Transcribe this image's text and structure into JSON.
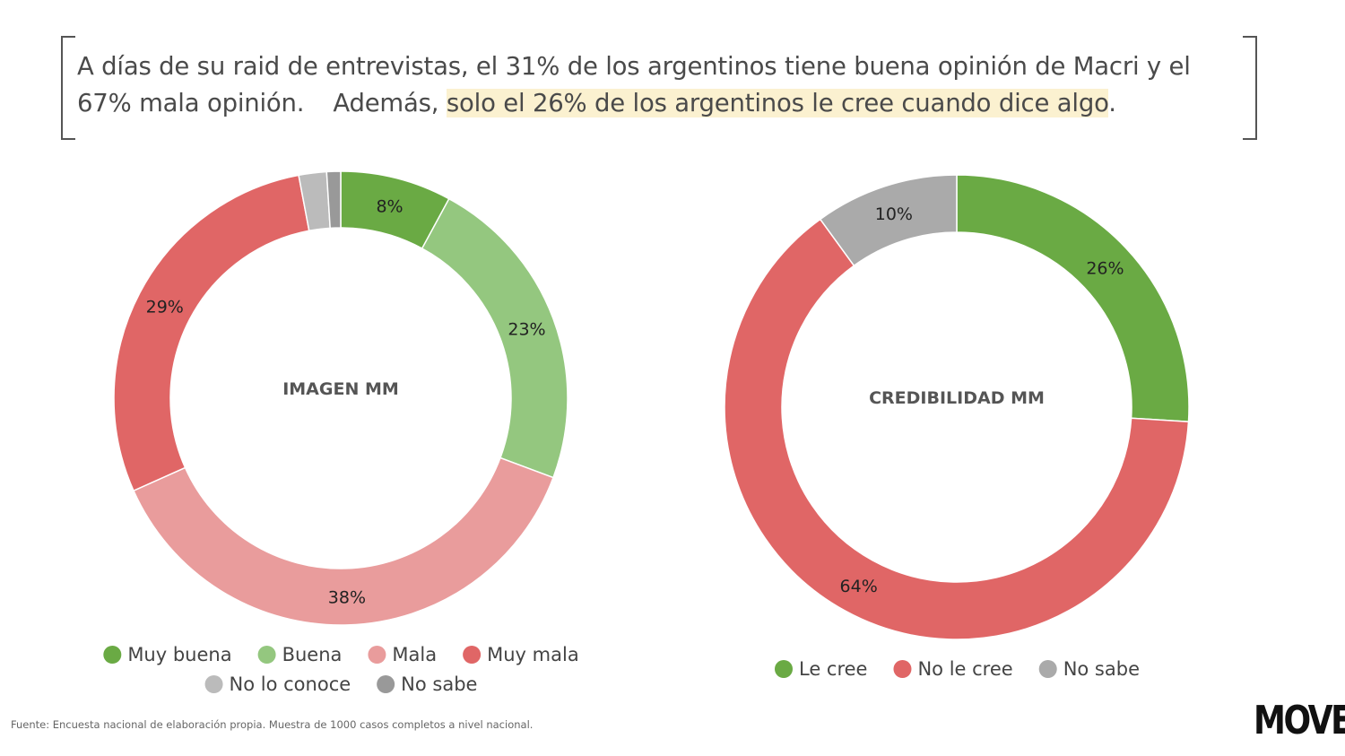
{
  "headline": {
    "part1": "A días de su raid de entrevistas, el 31% de los argentinos tiene buena opinión de Macri y el 67% mala opinión.",
    "part2": "Además,",
    "highlight": "solo el 26% de los argentinos le cree cuando dice algo",
    "end": "."
  },
  "chart_data": [
    {
      "type": "pie",
      "center_label": "IMAGEN MM",
      "categories": [
        "Muy buena",
        "Buena",
        "Mala",
        "Muy mala",
        "No lo conoce",
        "No sabe"
      ],
      "values": [
        8,
        23,
        38,
        29,
        2,
        1
      ],
      "labels": [
        "8%",
        "23%",
        "38%",
        "29%",
        "",
        ""
      ],
      "colors": [
        "#6aaa44",
        "#94c77f",
        "#e99c9c",
        "#e06666",
        "#bbbbbb",
        "#999999"
      ],
      "legend": {
        "placement": "bottom"
      }
    },
    {
      "type": "pie",
      "center_label": "CREDIBILIDAD MM",
      "categories": [
        "Le cree",
        "No le cree",
        "No sabe"
      ],
      "values": [
        26,
        64,
        10
      ],
      "labels": [
        "26%",
        "64%",
        "10%"
      ],
      "colors": [
        "#6aaa44",
        "#e06666",
        "#aaaaaa"
      ],
      "legend": {
        "placement": "bottom"
      }
    }
  ],
  "source_note": "Fuente: Encuesta nacional de elaboración propia. Muestra de 1000 casos completos a nivel nacional.",
  "brand": "MOVE"
}
